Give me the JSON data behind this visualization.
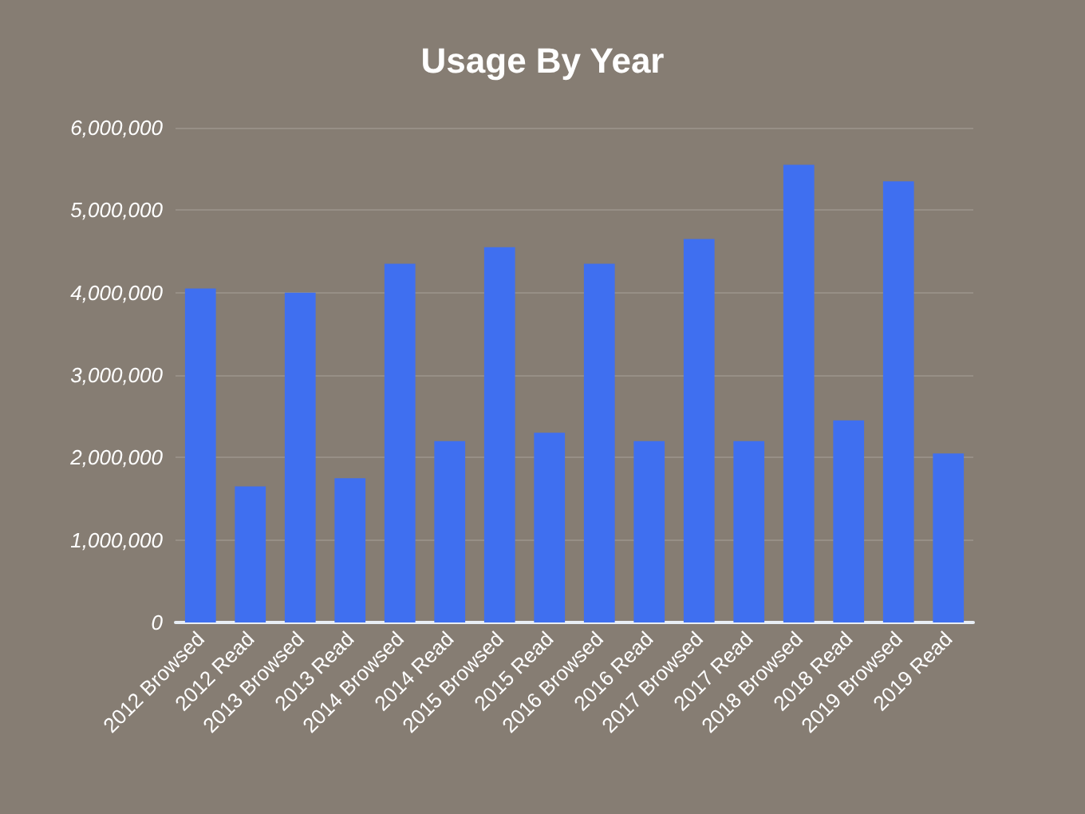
{
  "chart_data": {
    "type": "bar",
    "title": "Usage By Year",
    "categories": [
      "2012 Browsed",
      "2012 Read",
      "2013 Browsed",
      "2013 Read",
      "2014 Browsed",
      "2014 Read",
      "2015 Browsed",
      "2015 Read",
      "2016 Browsed",
      "2016 Read",
      "2017 Browsed",
      "2017 Read",
      "2018 Browsed",
      "2018 Read",
      "2019 Browsed",
      "2019 Read"
    ],
    "values": [
      4050000,
      1650000,
      4000000,
      1750000,
      4350000,
      2200000,
      4550000,
      2300000,
      4350000,
      2200000,
      4650000,
      2200000,
      5550000,
      2450000,
      5350000,
      2050000
    ],
    "color": "#3f6ff0",
    "ylim": [
      0,
      6000000
    ],
    "yticks": [
      {
        "value": 0,
        "label": "0"
      },
      {
        "value": 1000000,
        "label": "1,000,000"
      },
      {
        "value": 2000000,
        "label": "2,000,000"
      },
      {
        "value": 3000000,
        "label": "3,000,000"
      },
      {
        "value": 4000000,
        "label": "4,000,000"
      },
      {
        "value": 5000000,
        "label": "5,000,000"
      },
      {
        "value": 6000000,
        "label": "6,000,000"
      }
    ],
    "grid": "y"
  }
}
